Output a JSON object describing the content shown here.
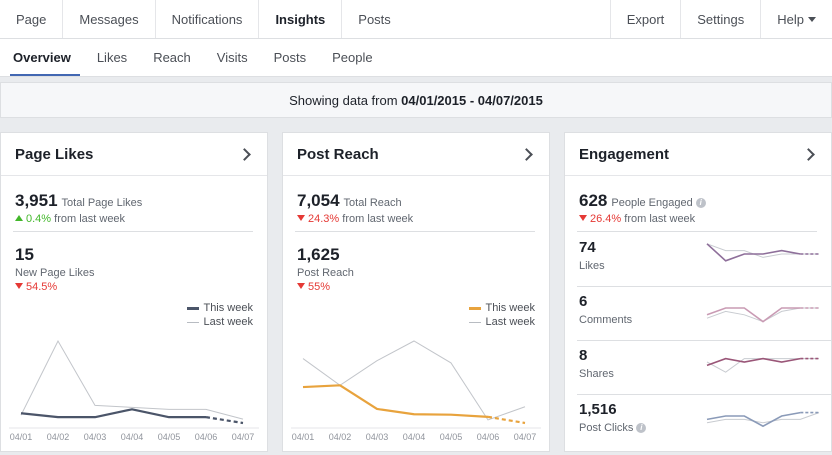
{
  "topnav": {
    "left": [
      "Page",
      "Messages",
      "Notifications",
      "Insights",
      "Posts"
    ],
    "right": [
      "Export",
      "Settings",
      "Help"
    ]
  },
  "subnav": [
    "Overview",
    "Likes",
    "Reach",
    "Visits",
    "Posts",
    "People"
  ],
  "daterange": {
    "prefix": "Showing data from ",
    "range": "04/01/2015 - 04/07/2015"
  },
  "cards": {
    "likes": {
      "title": "Page Likes",
      "total": "3,951",
      "total_label": "Total Page Likes",
      "change": "0.4%",
      "change_suffix": "from last week",
      "secondary": "15",
      "secondary_label": "New Page Likes",
      "secondary_change": "54.5%",
      "legend_this": "This week",
      "legend_last": "Last week",
      "this_color": "#4b5569"
    },
    "reach": {
      "title": "Post Reach",
      "total": "7,054",
      "total_label": "Total Reach",
      "change": "24.3%",
      "change_suffix": "from last week",
      "secondary": "1,625",
      "secondary_label": "Post Reach",
      "secondary_change": "55%",
      "legend_this": "This week",
      "legend_last": "Last week",
      "this_color": "#e8a33d"
    },
    "engagement": {
      "title": "Engagement",
      "total": "628",
      "total_label": "People Engaged",
      "change": "26.4%",
      "change_suffix": "from last week",
      "rows": [
        {
          "num": "74",
          "label": "Likes",
          "color": "#8e6f9a",
          "this": [
            8,
            3,
            5,
            5,
            6,
            5,
            5
          ],
          "last": [
            8,
            6,
            6,
            4,
            5,
            5,
            5
          ]
        },
        {
          "num": "6",
          "label": "Comments",
          "color": "#c99bb4",
          "this": [
            3,
            5,
            5,
            1,
            5,
            5,
            5
          ],
          "last": [
            2,
            4,
            3,
            1,
            4,
            5,
            5
          ]
        },
        {
          "num": "8",
          "label": "Shares",
          "color": "#9a5678",
          "this": [
            4,
            6,
            5,
            6,
            5,
            6,
            6
          ],
          "last": [
            5,
            2,
            6,
            6,
            6,
            6,
            6
          ]
        },
        {
          "num": "1,516",
          "label": "Post Clicks",
          "color": "#8a9ab8",
          "this": [
            4,
            5,
            5,
            2,
            5,
            6,
            6
          ],
          "last": [
            3,
            4,
            4,
            3,
            4,
            4,
            6
          ]
        }
      ]
    }
  },
  "chart_data": [
    {
      "type": "line",
      "x": [
        "04/01",
        "04/02",
        "04/03",
        "04/04",
        "04/05",
        "04/06",
        "04/07"
      ],
      "series": [
        {
          "name": "This week",
          "values": [
            3,
            1,
            1,
            5,
            1,
            1,
            -2
          ]
        },
        {
          "name": "Last week",
          "values": [
            2,
            40,
            7,
            6,
            5,
            5,
            0
          ]
        }
      ]
    },
    {
      "type": "line",
      "x": [
        "04/01",
        "04/02",
        "04/03",
        "04/04",
        "04/05",
        "04/06",
        "04/07"
      ],
      "series": [
        {
          "name": "This week",
          "values": [
            750,
            790,
            250,
            130,
            120,
            70,
            -70
          ]
        },
        {
          "name": "Last week",
          "values": [
            1400,
            790,
            1350,
            1800,
            1300,
            0,
            300
          ]
        }
      ]
    }
  ]
}
